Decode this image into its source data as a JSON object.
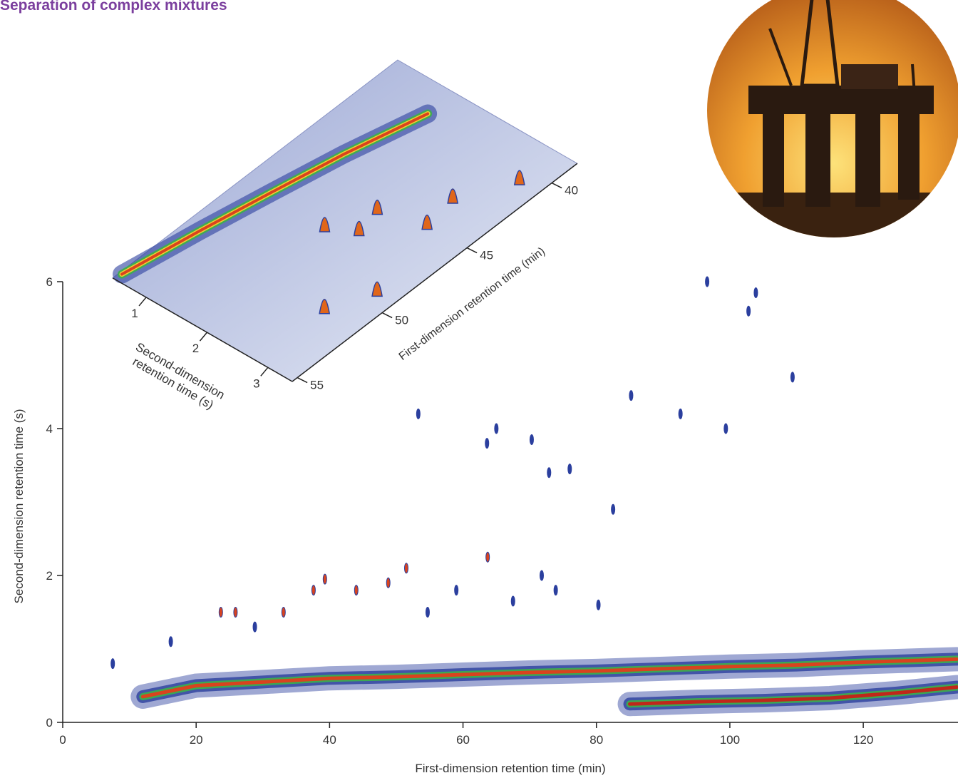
{
  "chart_data": [
    {
      "type": "scatter",
      "title": "Separation of complex mixtures",
      "xlabel": "First-dimension retention time (min)",
      "ylabel": "Second-dimension retention time (s)",
      "xlim": [
        0,
        134.2
      ],
      "xticks": [
        0,
        20,
        40,
        60,
        80,
        100,
        120
      ],
      "ylim": [
        0,
        6
      ],
      "yticks": [
        0,
        2,
        4,
        6
      ],
      "series": [
        {
          "color": "#2b3f9e",
          "x": [
            7.5,
            16.2,
            28.8,
            53.3,
            63.6,
            65,
            70.3,
            72.9,
            76,
            82.5,
            85.2,
            92.6,
            96.6,
            102.8,
            103.9,
            109.4,
            99.4,
            59,
            71.8,
            54.7,
            67.5,
            73.9,
            80.3
          ],
          "values": [
            0.8,
            1.1,
            1.3,
            4.2,
            3.8,
            4.0,
            3.85,
            3.4,
            3.45,
            2.9,
            4.45,
            4.2,
            6.0,
            5.6,
            5.85,
            4.7,
            4.0,
            1.8,
            2.0,
            1.5,
            1.65,
            1.8,
            1.6
          ]
        },
        {
          "color": "#d9431e",
          "x": [
            23.7,
            25.9,
            33.1,
            37.6,
            39.3,
            44,
            48.8,
            51.5,
            63.7
          ],
          "values": [
            1.5,
            1.5,
            1.5,
            1.8,
            1.95,
            1.8,
            1.9,
            2.1,
            2.25
          ]
        }
      ],
      "bands": [
        {
          "color": "#d9431e",
          "x": [
            12,
            20,
            30,
            40,
            50,
            60,
            70,
            80,
            90,
            100,
            110,
            120,
            134
          ],
          "values": [
            0.35,
            0.5,
            0.55,
            0.6,
            0.62,
            0.65,
            0.68,
            0.7,
            0.73,
            0.76,
            0.78,
            0.82,
            0.86
          ]
        },
        {
          "color": "#c0271a",
          "x": [
            85,
            95,
            105,
            115,
            125,
            134
          ],
          "values": [
            0.25,
            0.28,
            0.3,
            0.33,
            0.4,
            0.48
          ]
        }
      ]
    },
    {
      "type": "surface",
      "xlabel": "First-dimension retention time (min)",
      "ylabel": [
        "Second-dimension",
        "retention time (s)"
      ],
      "xlim": [
        38.5,
        55.3
      ],
      "xticks": [
        40,
        45,
        50,
        55
      ],
      "ylim": [
        0.45,
        3.4
      ],
      "yticks": [
        1,
        2,
        3
      ],
      "series": [
        {
          "color": "#e0661a",
          "x": [
            45.8,
            47.9,
            47.2,
            43.4,
            45.2,
            40.9,
            49.4,
            51.5
          ],
          "values": [
            2.15,
            1.87,
            2.24,
            2.72,
            2.8,
            3.12,
            3.15,
            2.87
          ]
        }
      ],
      "bands": [
        {
          "color": "#d9431e",
          "x": [
            54.9,
            51,
            47.5,
            44,
            40.1
          ],
          "values": [
            0.49,
            0.69,
            0.89,
            1.1,
            1.39
          ]
        }
      ]
    }
  ]
}
